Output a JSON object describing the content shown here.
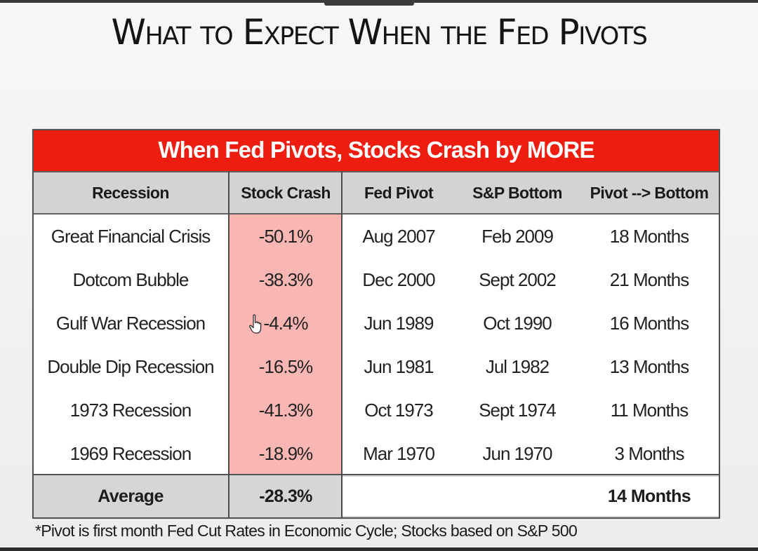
{
  "title": "What to Expect When the Fed Pivots",
  "table": {
    "banner": "When Fed Pivots, Stocks Crash by MORE",
    "headers": {
      "recession": "Recession",
      "stock_crash": "Stock Crash",
      "fed_pivot": "Fed Pivot",
      "sp_bottom": "S&P Bottom",
      "pivot_to_bottom": "Pivot --> Bottom"
    },
    "rows": [
      {
        "recession": "Great Financial Crisis",
        "stock_crash": "-50.1%",
        "fed_pivot": "Aug 2007",
        "sp_bottom": "Feb 2009",
        "pivot_to_bottom": "18 Months"
      },
      {
        "recession": "Dotcom Bubble",
        "stock_crash": "-38.3%",
        "fed_pivot": "Dec 2000",
        "sp_bottom": "Sept 2002",
        "pivot_to_bottom": "21 Months"
      },
      {
        "recession": "Gulf War Recession",
        "stock_crash": "-4.4%",
        "fed_pivot": "Jun 1989",
        "sp_bottom": "Oct 1990",
        "pivot_to_bottom": "16 Months"
      },
      {
        "recession": "Double Dip Recession",
        "stock_crash": "-16.5%",
        "fed_pivot": "Jun 1981",
        "sp_bottom": "Jul 1982",
        "pivot_to_bottom": "13 Months"
      },
      {
        "recession": "1973 Recession",
        "stock_crash": "-41.3%",
        "fed_pivot": "Oct 1973",
        "sp_bottom": "Sept 1974",
        "pivot_to_bottom": "11 Months"
      },
      {
        "recession": "1969 Recession",
        "stock_crash": "-18.9%",
        "fed_pivot": "Mar 1970",
        "sp_bottom": "Jun 1970",
        "pivot_to_bottom": "3 Months"
      }
    ],
    "footer": {
      "label": "Average",
      "stock_crash": "-28.3%",
      "pivot_to_bottom": "14 Months"
    }
  },
  "footnote": "*Pivot is first month Fed Cut Rates in Economic Cycle; Stocks based on S&P 500",
  "colors": {
    "banner": "#ef1c10",
    "stock_crash_highlight": "#f9b6b2",
    "header_bg": "#d3d3d3"
  },
  "icons": {
    "cursor": "hand-pointer-icon"
  }
}
